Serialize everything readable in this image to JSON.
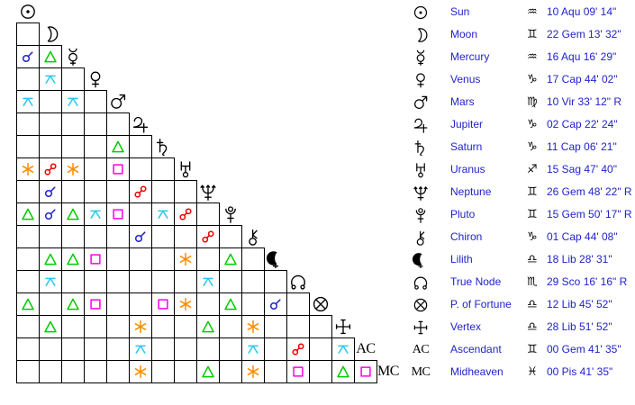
{
  "colors": {
    "background": "#FFFFFF",
    "grid_line": "#000000",
    "glyph_black": "#000000",
    "text_blue": "#2222CC"
  },
  "aspect_types": {
    "conjunction": {
      "symbol": "☌",
      "color": "#2222CC"
    },
    "sextile": {
      "symbol": "✶",
      "color": "#FF8C00"
    },
    "square": {
      "symbol": "□",
      "color": "#FF00E6"
    },
    "trine": {
      "symbol": "△",
      "color": "#00CC00"
    },
    "opposition": {
      "symbol": "☍",
      "color": "#EE0000"
    },
    "quincunx": {
      "symbol": "⚻",
      "color": "#2BC8F0"
    }
  },
  "chart_data": {
    "type": "aspectarian",
    "planets": [
      {
        "id": "sun",
        "name": "Sun",
        "sign_glyph": "♒",
        "position": "10 Aqu 09' 14\""
      },
      {
        "id": "moon",
        "name": "Moon",
        "sign_glyph": "♊",
        "position": "22 Gem 13' 32\""
      },
      {
        "id": "mercury",
        "name": "Mercury",
        "sign_glyph": "♒",
        "position": "16 Aqu 16' 29\""
      },
      {
        "id": "venus",
        "name": "Venus",
        "sign_glyph": "♑",
        "position": "17 Cap 44' 02\""
      },
      {
        "id": "mars",
        "name": "Mars",
        "sign_glyph": "♍",
        "position": "10 Vir 33' 12\" R"
      },
      {
        "id": "jupiter",
        "name": "Jupiter",
        "sign_glyph": "♑",
        "position": "02 Cap 22' 24\""
      },
      {
        "id": "saturn",
        "name": "Saturn",
        "sign_glyph": "♑",
        "position": "11 Cap 06' 21\""
      },
      {
        "id": "uranus",
        "name": "Uranus",
        "sign_glyph": "♐",
        "position": "15 Sag 47' 40\""
      },
      {
        "id": "neptune",
        "name": "Neptune",
        "sign_glyph": "♊",
        "position": "26 Gem 48' 22\" R"
      },
      {
        "id": "pluto",
        "name": "Pluto",
        "sign_glyph": "♊",
        "position": "15 Gem 50' 17\" R"
      },
      {
        "id": "chiron",
        "name": "Chiron",
        "sign_glyph": "♑",
        "position": "01 Cap 44' 08\""
      },
      {
        "id": "lilith",
        "name": "Lilith",
        "sign_glyph": "♎",
        "position": "18 Lib 28' 31\""
      },
      {
        "id": "true-node",
        "name": "True Node",
        "sign_glyph": "♏",
        "position": "29 Sco 16' 16\" R"
      },
      {
        "id": "fortune",
        "name": "P. of Fortune",
        "sign_glyph": "♎",
        "position": "12 Lib 45' 52\""
      },
      {
        "id": "vertex",
        "name": "Vertex",
        "sign_glyph": "♎",
        "position": "28 Lib 51' 52\""
      },
      {
        "id": "ascendant",
        "name": "Ascendant",
        "sign_glyph": "♊",
        "position": "00 Gem 41' 35\""
      },
      {
        "id": "midheaven",
        "name": "Midheaven",
        "sign_glyph": "♓",
        "position": "00 Pis 41' 35\""
      }
    ],
    "aspects": [
      {
        "a": "mercury",
        "b": "sun",
        "t": "conjunction"
      },
      {
        "a": "mercury",
        "b": "moon",
        "t": "trine"
      },
      {
        "a": "venus",
        "b": "moon",
        "t": "quincunx"
      },
      {
        "a": "mars",
        "b": "sun",
        "t": "quincunx"
      },
      {
        "a": "mars",
        "b": "mercury",
        "t": "quincunx"
      },
      {
        "a": "saturn",
        "b": "mars",
        "t": "trine"
      },
      {
        "a": "uranus",
        "b": "sun",
        "t": "sextile"
      },
      {
        "a": "uranus",
        "b": "moon",
        "t": "opposition"
      },
      {
        "a": "uranus",
        "b": "mercury",
        "t": "sextile"
      },
      {
        "a": "uranus",
        "b": "mars",
        "t": "square"
      },
      {
        "a": "neptune",
        "b": "moon",
        "t": "conjunction"
      },
      {
        "a": "neptune",
        "b": "jupiter",
        "t": "opposition"
      },
      {
        "a": "pluto",
        "b": "sun",
        "t": "trine"
      },
      {
        "a": "pluto",
        "b": "moon",
        "t": "conjunction"
      },
      {
        "a": "pluto",
        "b": "mercury",
        "t": "trine"
      },
      {
        "a": "pluto",
        "b": "venus",
        "t": "quincunx"
      },
      {
        "a": "pluto",
        "b": "mars",
        "t": "square"
      },
      {
        "a": "pluto",
        "b": "saturn",
        "t": "quincunx"
      },
      {
        "a": "pluto",
        "b": "uranus",
        "t": "opposition"
      },
      {
        "a": "chiron",
        "b": "jupiter",
        "t": "conjunction"
      },
      {
        "a": "chiron",
        "b": "neptune",
        "t": "opposition"
      },
      {
        "a": "lilith",
        "b": "moon",
        "t": "trine"
      },
      {
        "a": "lilith",
        "b": "mercury",
        "t": "trine"
      },
      {
        "a": "lilith",
        "b": "venus",
        "t": "square"
      },
      {
        "a": "lilith",
        "b": "uranus",
        "t": "sextile"
      },
      {
        "a": "lilith",
        "b": "pluto",
        "t": "trine"
      },
      {
        "a": "true-node",
        "b": "moon",
        "t": "quincunx"
      },
      {
        "a": "true-node",
        "b": "neptune",
        "t": "quincunx"
      },
      {
        "a": "fortune",
        "b": "sun",
        "t": "trine"
      },
      {
        "a": "fortune",
        "b": "mercury",
        "t": "trine"
      },
      {
        "a": "fortune",
        "b": "venus",
        "t": "square"
      },
      {
        "a": "fortune",
        "b": "saturn",
        "t": "square"
      },
      {
        "a": "fortune",
        "b": "uranus",
        "t": "sextile"
      },
      {
        "a": "fortune",
        "b": "pluto",
        "t": "trine"
      },
      {
        "a": "fortune",
        "b": "lilith",
        "t": "conjunction"
      },
      {
        "a": "vertex",
        "b": "moon",
        "t": "trine"
      },
      {
        "a": "vertex",
        "b": "jupiter",
        "t": "sextile"
      },
      {
        "a": "vertex",
        "b": "neptune",
        "t": "trine"
      },
      {
        "a": "vertex",
        "b": "chiron",
        "t": "sextile"
      },
      {
        "a": "ascendant",
        "b": "jupiter",
        "t": "quincunx"
      },
      {
        "a": "ascendant",
        "b": "chiron",
        "t": "quincunx"
      },
      {
        "a": "ascendant",
        "b": "true-node",
        "t": "opposition"
      },
      {
        "a": "ascendant",
        "b": "vertex",
        "t": "quincunx"
      },
      {
        "a": "midheaven",
        "b": "jupiter",
        "t": "sextile"
      },
      {
        "a": "midheaven",
        "b": "neptune",
        "t": "trine"
      },
      {
        "a": "midheaven",
        "b": "chiron",
        "t": "sextile"
      },
      {
        "a": "midheaven",
        "b": "true-node",
        "t": "square"
      },
      {
        "a": "midheaven",
        "b": "vertex",
        "t": "trine"
      },
      {
        "a": "midheaven",
        "b": "ascendant",
        "t": "square"
      }
    ]
  }
}
